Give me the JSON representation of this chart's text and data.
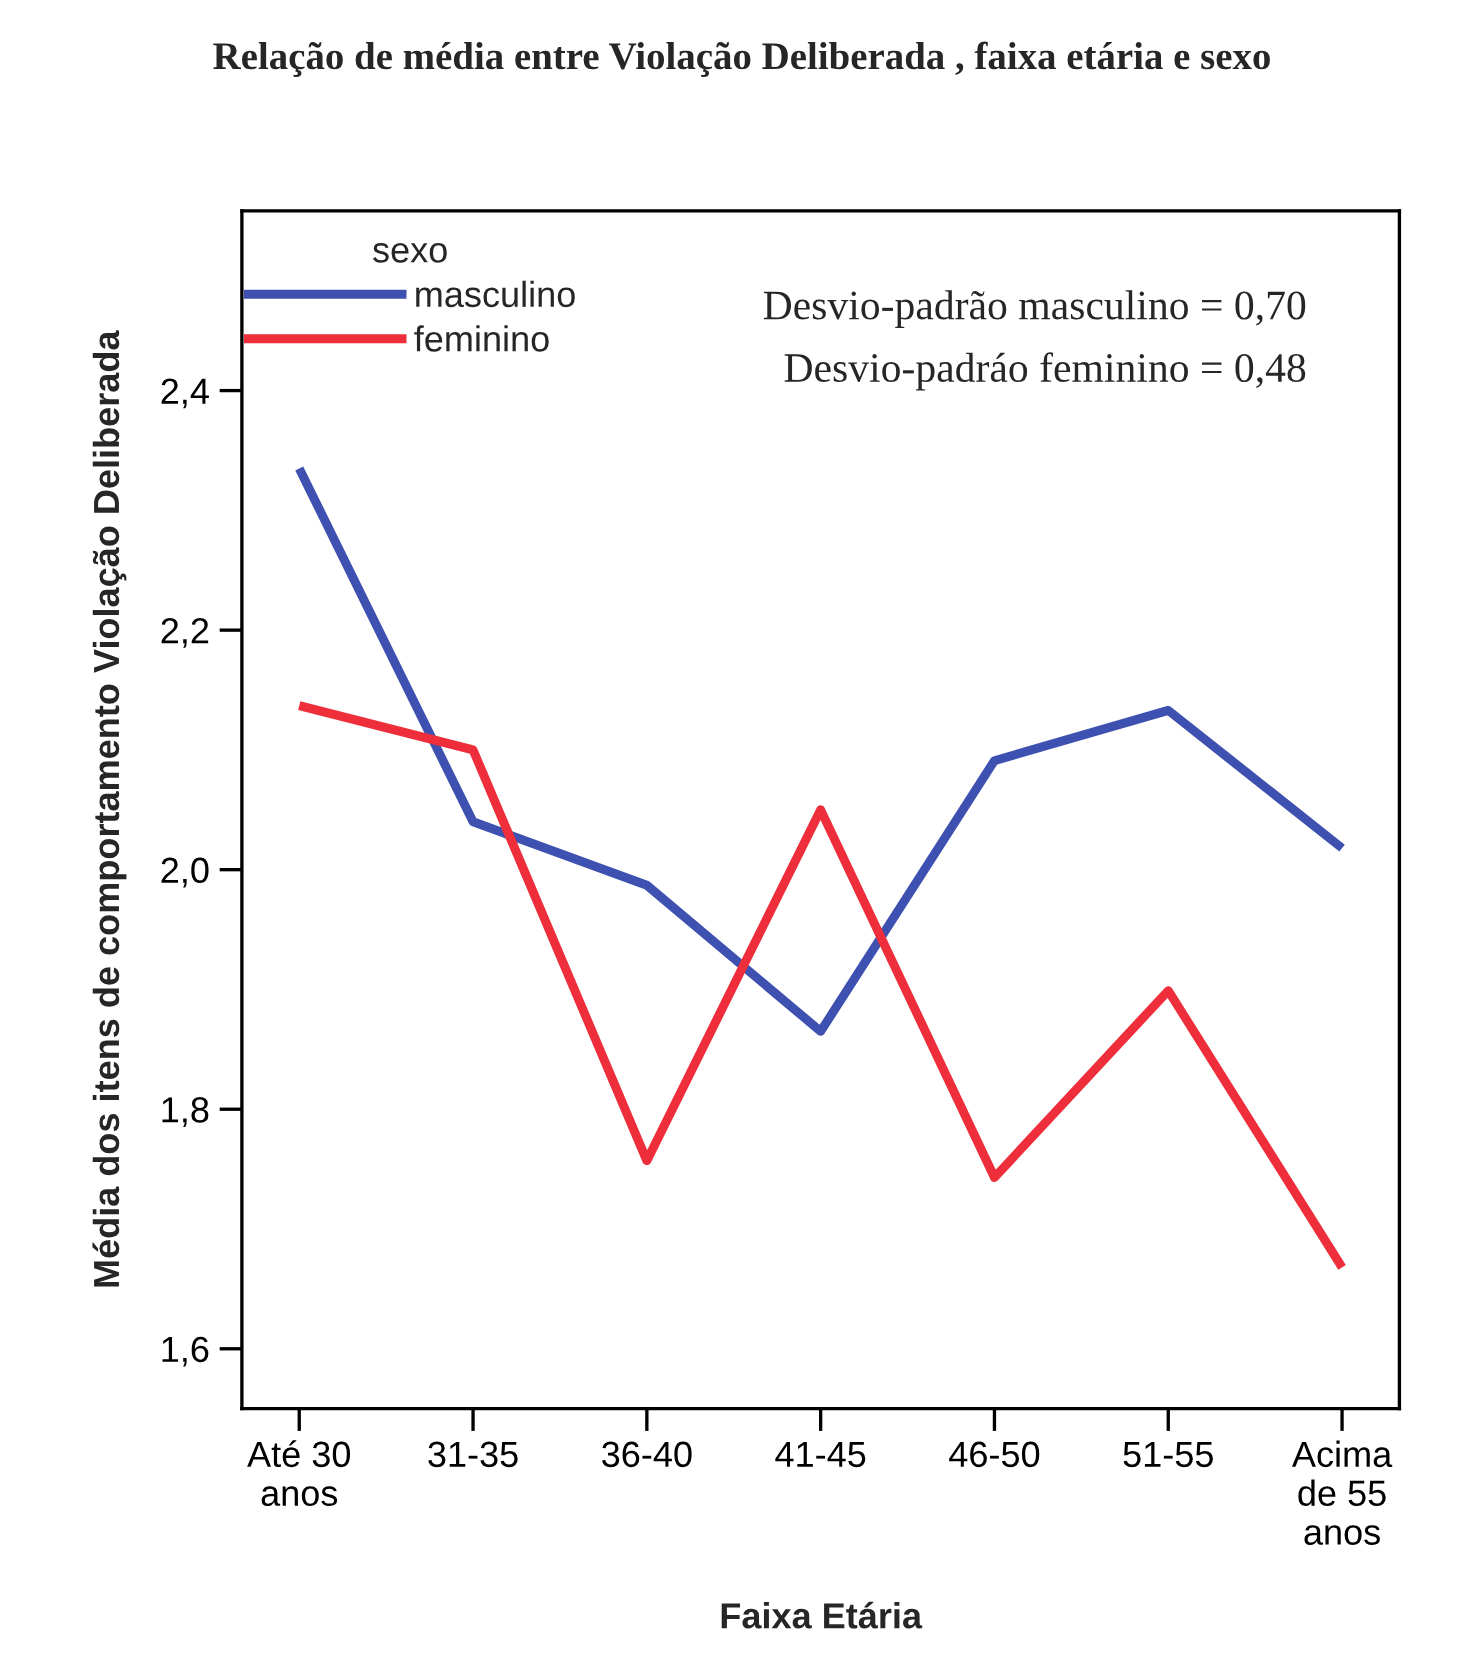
{
  "chart_data": {
    "type": "line",
    "title": "Relação de média entre Violação Deliberada , faixa etária e sexo",
    "xlabel": "Faixa Etária",
    "ylabel": "Média dos itens de comportamento Violação Deliberada",
    "legend_title": "sexo",
    "legend": "top left",
    "grid": false,
    "categories": [
      "Até 30\nanos",
      "31-35",
      "36-40",
      "41-45",
      "46-50",
      "51-55",
      "Acima\nde 55\nanos"
    ],
    "series": [
      {
        "name": "masculino",
        "color": "#3f51b0",
        "values": [
          2.335,
          2.04,
          1.987,
          1.865,
          2.091,
          2.133,
          2.018
        ]
      },
      {
        "name": "feminino",
        "color": "#ee2e3a",
        "values": [
          2.137,
          2.1,
          1.757,
          2.05,
          1.743,
          1.899,
          1.668
        ]
      }
    ],
    "ylim": [
      1.55,
      2.55
    ],
    "yticks": [
      {
        "value": 1.6,
        "label": "1,6"
      },
      {
        "value": 1.8,
        "label": "1,8"
      },
      {
        "value": 2.0,
        "label": "2,0"
      },
      {
        "value": 2.2,
        "label": "2,2"
      },
      {
        "value": 2.4,
        "label": "2,4"
      }
    ],
    "annotations": [
      "Desvio-padrão masculino = 0,70",
      "Desvio-padráo feminino = 0,48"
    ]
  }
}
